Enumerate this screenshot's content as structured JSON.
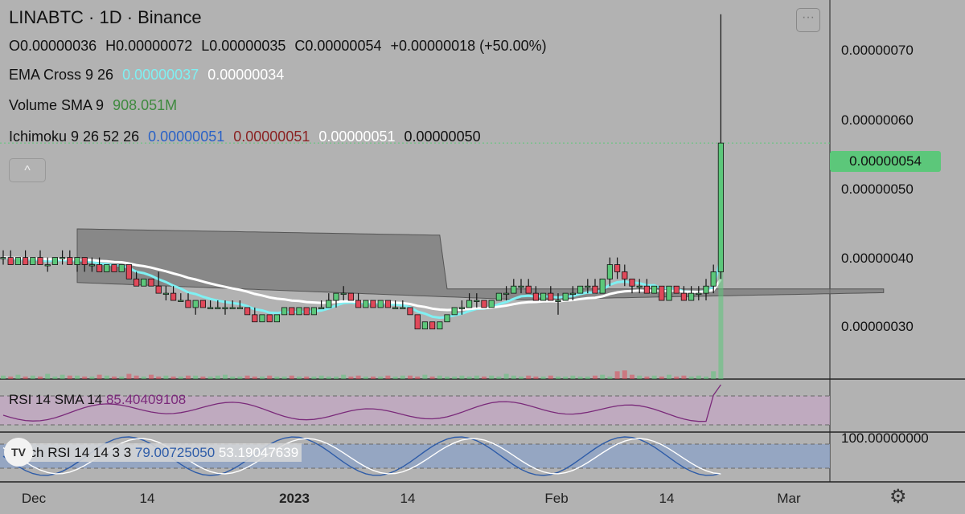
{
  "header": {
    "title": "LINABTC · 1D · Binance",
    "ohlc": {
      "open": "O0.00000036",
      "high": "H0.00000072",
      "low": "L0.00000035",
      "close": "C0.00000054",
      "change": "+0.00000018 (+50.00%)"
    },
    "menu_label": "···",
    "collapse_label": "^"
  },
  "indicators": {
    "ema": {
      "label": "EMA Cross 9 26",
      "fast": "0.00000037",
      "slow": "0.00000034",
      "fast_color": "#7ff0f2",
      "slow_color": "#ffffff"
    },
    "volume": {
      "label": "Volume SMA 9",
      "value": "908.051M",
      "color": "#3f8a3f"
    },
    "ichimoku": {
      "label": "Ichimoku 9 26 52 26",
      "v1": "0.00000051",
      "v2": "0.00000051",
      "v3": "0.00000051",
      "v4": "0.00000050",
      "c1": "#2a62c6",
      "c2": "#8a2222",
      "c3": "#ffffff",
      "c4": "#111111"
    },
    "rsi": {
      "label": "RSI 14 SMA 14",
      "value": "85.40409108",
      "color": "#7a2a7a"
    },
    "stoch": {
      "label": "Stoch RSI 14 14 3 3",
      "k": "79.00725050",
      "d": "53.19047639",
      "k_color": "#2e5ca8",
      "d_color": "#ffffff"
    }
  },
  "price_axis": {
    "ticks": [
      "0.00000070",
      "0.00000060",
      "0.00000050",
      "0.00000040",
      "0.00000030"
    ],
    "current_price": "0.00000054",
    "stoch_tick": "100.00000000"
  },
  "time_axis": {
    "labels": [
      "Dec",
      "14",
      "2023",
      "14",
      "Feb",
      "14",
      "Mar"
    ]
  },
  "colors": {
    "up": "#5cc77a",
    "down": "#e0495a",
    "background": "#b2b2b2",
    "cloud": "#7a7a7a",
    "rsi_band": "#c4a7c4",
    "stoch_band": "#8fa3c4"
  },
  "chart_data": {
    "type": "candlestick",
    "symbol": "LINABTC",
    "interval": "1D",
    "exchange": "Binance",
    "ylim": [
      2.1e-07,
      7.4e-07
    ],
    "current_price": 5.4e-07,
    "candles": [
      [
        3.8e-07,
        3.9e-07,
        3.7e-07,
        3.8e-07
      ],
      [
        3.8e-07,
        3.9e-07,
        3.7e-07,
        3.7e-07
      ],
      [
        3.7e-07,
        3.8e-07,
        3.7e-07,
        3.8e-07
      ],
      [
        3.8e-07,
        3.9e-07,
        3.7e-07,
        3.7e-07
      ],
      [
        3.7e-07,
        3.8e-07,
        3.7e-07,
        3.8e-07
      ],
      [
        3.8e-07,
        3.9e-07,
        3.7e-07,
        3.7e-07
      ],
      [
        3.7e-07,
        3.8e-07,
        3.6e-07,
        3.7e-07
      ],
      [
        3.7e-07,
        3.8e-07,
        3.7e-07,
        3.8e-07
      ],
      [
        3.8e-07,
        3.9e-07,
        3.7e-07,
        3.8e-07
      ],
      [
        3.8e-07,
        3.9e-07,
        3.7e-07,
        3.7e-07
      ],
      [
        3.7e-07,
        3.8e-07,
        3.6e-07,
        3.8e-07
      ],
      [
        3.8e-07,
        3.8e-07,
        3.6e-07,
        3.7e-07
      ],
      [
        3.7e-07,
        3.8e-07,
        3.6e-07,
        3.7e-07
      ],
      [
        3.7e-07,
        3.8e-07,
        3.6e-07,
        3.6e-07
      ],
      [
        3.6e-07,
        3.7e-07,
        3.6e-07,
        3.7e-07
      ],
      [
        3.7e-07,
        3.7e-07,
        3.6e-07,
        3.6e-07
      ],
      [
        3.6e-07,
        3.7e-07,
        3.6e-07,
        3.7e-07
      ],
      [
        3.7e-07,
        3.7e-07,
        3.5e-07,
        3.5e-07
      ],
      [
        3.5e-07,
        3.6e-07,
        3.4e-07,
        3.4e-07
      ],
      [
        3.4e-07,
        3.5e-07,
        3.4e-07,
        3.5e-07
      ],
      [
        3.5e-07,
        3.5e-07,
        3.4e-07,
        3.4e-07
      ],
      [
        3.4e-07,
        3.6e-07,
        3.3e-07,
        3.3e-07
      ],
      [
        3.3e-07,
        3.4e-07,
        3.2e-07,
        3.3e-07
      ],
      [
        3.3e-07,
        3.4e-07,
        3.2e-07,
        3.2e-07
      ],
      [
        3.2e-07,
        3.3e-07,
        3.2e-07,
        3.2e-07
      ],
      [
        3.2e-07,
        3.3e-07,
        3.1e-07,
        3.1e-07
      ],
      [
        3.1e-07,
        3.2e-07,
        3e-07,
        3.2e-07
      ],
      [
        3.2e-07,
        3.2e-07,
        3.1e-07,
        3.1e-07
      ],
      [
        3.1e-07,
        3.2e-07,
        3.1e-07,
        3.1e-07
      ],
      [
        3.1e-07,
        3.2e-07,
        3.1e-07,
        3.1e-07
      ],
      [
        3.1e-07,
        3.2e-07,
        3e-07,
        3.1e-07
      ],
      [
        3.1e-07,
        3.2e-07,
        3.1e-07,
        3.1e-07
      ],
      [
        3.1e-07,
        3.2e-07,
        3.1e-07,
        3.1e-07
      ],
      [
        3.1e-07,
        3.1e-07,
        3e-07,
        3e-07
      ],
      [
        3e-07,
        3.1e-07,
        2.9e-07,
        2.9e-07
      ],
      [
        2.9e-07,
        3e-07,
        2.9e-07,
        3e-07
      ],
      [
        3e-07,
        3e-07,
        2.9e-07,
        2.9e-07
      ],
      [
        2.9e-07,
        3e-07,
        2.9e-07,
        3e-07
      ],
      [
        3e-07,
        3.1e-07,
        3e-07,
        3.1e-07
      ],
      [
        3.1e-07,
        3.1e-07,
        3e-07,
        3e-07
      ],
      [
        3e-07,
        3.1e-07,
        3e-07,
        3.1e-07
      ],
      [
        3.1e-07,
        3.1e-07,
        3e-07,
        3e-07
      ],
      [
        3e-07,
        3.1e-07,
        3e-07,
        3.1e-07
      ],
      [
        3.1e-07,
        3.2e-07,
        3.1e-07,
        3.1e-07
      ],
      [
        3.1e-07,
        3.3e-07,
        3.1e-07,
        3.2e-07
      ],
      [
        3.2e-07,
        3.3e-07,
        3.1e-07,
        3.3e-07
      ],
      [
        3.3e-07,
        3.4e-07,
        3.2e-07,
        3.3e-07
      ],
      [
        3.3e-07,
        3.3e-07,
        3.2e-07,
        3.2e-07
      ],
      [
        3.2e-07,
        3.3e-07,
        3.1e-07,
        3.1e-07
      ],
      [
        3.1e-07,
        3.2e-07,
        3.1e-07,
        3.2e-07
      ],
      [
        3.2e-07,
        3.2e-07,
        3.1e-07,
        3.1e-07
      ],
      [
        3.1e-07,
        3.2e-07,
        3.1e-07,
        3.2e-07
      ],
      [
        3.2e-07,
        3.2e-07,
        3.1e-07,
        3.1e-07
      ],
      [
        3.1e-07,
        3.2e-07,
        3.1e-07,
        3.1e-07
      ],
      [
        3.1e-07,
        3.2e-07,
        3.1e-07,
        3.1e-07
      ],
      [
        3.1e-07,
        3.1e-07,
        3e-07,
        3e-07
      ],
      [
        3e-07,
        3e-07,
        2.8e-07,
        2.8e-07
      ],
      [
        2.8e-07,
        2.9e-07,
        2.8e-07,
        2.9e-07
      ],
      [
        2.9e-07,
        2.9e-07,
        2.8e-07,
        2.8e-07
      ],
      [
        2.8e-07,
        2.9e-07,
        2.8e-07,
        2.9e-07
      ],
      [
        2.9e-07,
        3e-07,
        2.9e-07,
        3e-07
      ],
      [
        3e-07,
        3.1e-07,
        3e-07,
        3.1e-07
      ],
      [
        3.1e-07,
        3.2e-07,
        3e-07,
        3.1e-07
      ],
      [
        3.1e-07,
        3.3e-07,
        3.1e-07,
        3.2e-07
      ],
      [
        3.2e-07,
        3.3e-07,
        3.1e-07,
        3.2e-07
      ],
      [
        3.2e-07,
        3.2e-07,
        3.1e-07,
        3.1e-07
      ],
      [
        3.1e-07,
        3.2e-07,
        3.1e-07,
        3.2e-07
      ],
      [
        3.2e-07,
        3.3e-07,
        3.2e-07,
        3.3e-07
      ],
      [
        3.3e-07,
        3.4e-07,
        3.2e-07,
        3.3e-07
      ],
      [
        3.3e-07,
        3.5e-07,
        3.3e-07,
        3.4e-07
      ],
      [
        3.4e-07,
        3.5e-07,
        3.3e-07,
        3.4e-07
      ],
      [
        3.4e-07,
        3.5e-07,
        3.3e-07,
        3.3e-07
      ],
      [
        3.3e-07,
        3.4e-07,
        3.2e-07,
        3.2e-07
      ],
      [
        3.2e-07,
        3.3e-07,
        3.2e-07,
        3.3e-07
      ],
      [
        3.3e-07,
        3.4e-07,
        3.2e-07,
        3.2e-07
      ],
      [
        3.2e-07,
        3.3e-07,
        3e-07,
        3.2e-07
      ],
      [
        3.2e-07,
        3.3e-07,
        3.2e-07,
        3.3e-07
      ],
      [
        3.3e-07,
        3.4e-07,
        3.2e-07,
        3.3e-07
      ],
      [
        3.3e-07,
        3.4e-07,
        3.3e-07,
        3.4e-07
      ],
      [
        3.4e-07,
        3.5e-07,
        3.3e-07,
        3.4e-07
      ],
      [
        3.4e-07,
        3.5e-07,
        3.3e-07,
        3.3e-07
      ],
      [
        3.3e-07,
        3.5e-07,
        3.3e-07,
        3.5e-07
      ],
      [
        3.5e-07,
        3.8e-07,
        3.4e-07,
        3.7e-07
      ],
      [
        3.7e-07,
        3.8e-07,
        3.5e-07,
        3.6e-07
      ],
      [
        3.6e-07,
        3.7e-07,
        3.4e-07,
        3.5e-07
      ],
      [
        3.5e-07,
        3.5e-07,
        3.3e-07,
        3.4e-07
      ],
      [
        3.4e-07,
        3.5e-07,
        3.3e-07,
        3.4e-07
      ],
      [
        3.4e-07,
        3.5e-07,
        3.3e-07,
        3.3e-07
      ],
      [
        3.3e-07,
        3.4e-07,
        3.3e-07,
        3.4e-07
      ],
      [
        3.4e-07,
        3.4e-07,
        3.2e-07,
        3.2e-07
      ],
      [
        3.2e-07,
        3.4e-07,
        3.2e-07,
        3.4e-07
      ],
      [
        3.4e-07,
        3.4e-07,
        3.3e-07,
        3.3e-07
      ],
      [
        3.3e-07,
        3.4e-07,
        3.2e-07,
        3.2e-07
      ],
      [
        3.2e-07,
        3.4e-07,
        3.2e-07,
        3.3e-07
      ],
      [
        3.3e-07,
        3.4e-07,
        3.2e-07,
        3.3e-07
      ],
      [
        3.3e-07,
        3.5e-07,
        3.2e-07,
        3.4e-07
      ],
      [
        3.4e-07,
        3.7e-07,
        3.3e-07,
        3.6e-07
      ],
      [
        3.6e-07,
        7.2e-07,
        3.5e-07,
        5.4e-07
      ]
    ],
    "volume": [
      4,
      3,
      5,
      3,
      4,
      3,
      6,
      3,
      5,
      4,
      4,
      3,
      3,
      5,
      4,
      3,
      3,
      6,
      4,
      3,
      5,
      3,
      4,
      3,
      3,
      4,
      4,
      3,
      3,
      4,
      5,
      3,
      3,
      4,
      3,
      3,
      4,
      3,
      3,
      4,
      3,
      3,
      3,
      4,
      3,
      3,
      5,
      3,
      4,
      3,
      3,
      3,
      4,
      3,
      4,
      4,
      3,
      5,
      3,
      4,
      3,
      3,
      4,
      3,
      4,
      3,
      4,
      3,
      6,
      4,
      3,
      4,
      3,
      3,
      4,
      3,
      3,
      4,
      3,
      3,
      4,
      5,
      3,
      9,
      10,
      5,
      4,
      3,
      4,
      3,
      5,
      3,
      4,
      3,
      4,
      3,
      9,
      130
    ],
    "rsi": {
      "value": 85.40409108,
      "sma": 85.40409108
    },
    "stoch_rsi": {
      "k": 79.0072505,
      "d": 53.19047639
    },
    "ema_cross": {
      "fast": 3.7e-07,
      "slow": 3.4e-07
    },
    "ichimoku": {
      "conversion": 5.1e-07,
      "base": 5.1e-07,
      "lagging": 5.1e-07,
      "lead": 5e-07
    }
  }
}
